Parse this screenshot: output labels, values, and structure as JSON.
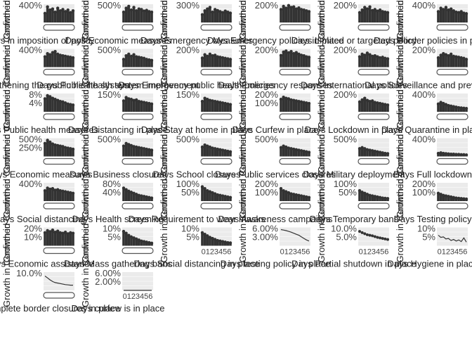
{
  "chart_data": [
    {
      "type": "area",
      "xlabel": "Days in imposition of policy",
      "ylabel": "Growth in Confirmed",
      "y_ticks": [
        "400%"
      ],
      "values": [
        35,
        60,
        48,
        52,
        40,
        55,
        45,
        50,
        42,
        48,
        38,
        45
      ]
    },
    {
      "type": "area",
      "xlabel": "Days Economic measures",
      "ylabel": "Growth in Confirmed",
      "y_ticks": [
        "500%"
      ],
      "values": [
        40,
        55,
        62,
        48,
        58,
        45,
        52,
        50,
        44,
        47,
        42,
        40
      ]
    },
    {
      "type": "area",
      "xlabel": "Days Emergency Measures",
      "ylabel": "Growth in Confirmed",
      "y_ticks": [
        "300%"
      ],
      "values": [
        30,
        45,
        52,
        58,
        40,
        50,
        46,
        42,
        38,
        44,
        40,
        36
      ]
    },
    {
      "type": "area",
      "xlabel": "Days Emergency policies in place",
      "ylabel": "Growth in Confirmed",
      "y_ticks": [
        "200%"
      ],
      "values": [
        50,
        62,
        55,
        65,
        58,
        60,
        52,
        56,
        50,
        48,
        45,
        42
      ]
    },
    {
      "type": "area",
      "xlabel": "Days Limited or targeted policy",
      "ylabel": "Growth in Confirmed",
      "y_ticks": [
        "200%"
      ],
      "values": [
        38,
        48,
        58,
        52,
        60,
        46,
        50,
        44,
        48,
        42,
        40,
        38
      ]
    },
    {
      "type": "area",
      "xlabel": "Days Border policies in place",
      "ylabel": "Growth in Confirmed",
      "y_ticks": [
        "400%"
      ],
      "values": [
        42,
        55,
        50,
        58,
        48,
        52,
        45,
        40,
        38,
        42,
        36,
        34
      ]
    },
    {
      "type": "area",
      "xlabel": "Days Strengthening the public health system",
      "ylabel": "Growth in Confirmed",
      "y_ticks": [
        "400%"
      ],
      "values": [
        40,
        52,
        48,
        56,
        60,
        50,
        46,
        44,
        42,
        40,
        38,
        36
      ]
    },
    {
      "type": "area",
      "xlabel": "Days Public health system improvement",
      "ylabel": "Growth in Confirmed",
      "y_ticks": [
        "500%"
      ],
      "values": [
        30,
        44,
        50,
        42,
        48,
        40,
        38,
        36,
        34,
        30,
        28,
        26
      ]
    },
    {
      "type": "area",
      "xlabel": "Days Emergency public health policies",
      "ylabel": "Growth in Confirmed",
      "y_ticks": [
        "200%"
      ],
      "values": [
        35,
        48,
        42,
        50,
        44,
        46,
        40,
        38,
        36,
        34,
        32,
        30
      ]
    },
    {
      "type": "area",
      "xlabel": "Days Emergency responses",
      "ylabel": "Growth in Confirmed",
      "y_ticks": [
        "200%"
      ],
      "values": [
        45,
        58,
        62,
        55,
        60,
        52,
        56,
        50,
        46,
        44,
        40,
        38
      ]
    },
    {
      "type": "area",
      "xlabel": "Days International policies",
      "ylabel": "Growth in Confirmed",
      "y_ticks": [
        "200%"
      ],
      "values": [
        40,
        50,
        46,
        54,
        48,
        42,
        44,
        40,
        36,
        38,
        34,
        32
      ]
    },
    {
      "type": "area",
      "xlabel": "Days Surveillance and prevention",
      "ylabel": "Growth in Confirmed",
      "y_ticks": [
        "200%"
      ],
      "values": [
        36,
        46,
        52,
        48,
        44,
        50,
        42,
        40,
        38,
        36,
        34,
        30
      ]
    },
    {
      "type": "area",
      "xlabel": "Days Public health measures",
      "ylabel": "Growth in Confirmed",
      "y_ticks": [
        "8%",
        "4%"
      ],
      "values": [
        50,
        62,
        58,
        52,
        48,
        44,
        40,
        38,
        34,
        30,
        28,
        26
      ]
    },
    {
      "type": "area",
      "xlabel": "Days Distancing in place",
      "ylabel": "Growth in Confirmed",
      "y_ticks": [
        "150%"
      ],
      "values": [
        42,
        55,
        50,
        48,
        44,
        46,
        40,
        38,
        36,
        34,
        32,
        30
      ]
    },
    {
      "type": "area",
      "xlabel": "Days Stay at home in place",
      "ylabel": "Growth in Confirmed",
      "y_ticks": [
        "150%"
      ],
      "values": [
        40,
        52,
        48,
        44,
        42,
        40,
        38,
        36,
        34,
        32,
        30,
        28
      ]
    },
    {
      "type": "area",
      "xlabel": "Days Curfew in place",
      "ylabel": "Growth in Confirmed",
      "y_ticks": [
        "200%",
        "100%"
      ],
      "values": [
        48,
        56,
        52,
        50,
        46,
        44,
        42,
        40,
        38,
        36,
        34,
        32
      ]
    },
    {
      "type": "area",
      "xlabel": "Days Lockdown in place",
      "ylabel": "Growth in Confirmed",
      "y_ticks": [
        "200%"
      ],
      "values": [
        38,
        46,
        52,
        44,
        40,
        42,
        36,
        34,
        32,
        30,
        28,
        26
      ]
    },
    {
      "type": "area",
      "xlabel": "Days Quarantine in place",
      "ylabel": "Growth in Confirmed",
      "y_ticks": [
        "400%"
      ],
      "values": [
        30,
        36,
        32,
        28,
        24,
        22,
        20,
        18,
        16,
        15,
        14,
        13
      ]
    },
    {
      "type": "area",
      "xlabel": "Days Economic measures",
      "ylabel": "Growth in Confirmed",
      "y_ticks": [
        "500%",
        "250%"
      ],
      "values": [
        50,
        62,
        55,
        48,
        44,
        42,
        40,
        38,
        34,
        32,
        30,
        28
      ]
    },
    {
      "type": "area",
      "xlabel": "Days Business closures",
      "ylabel": "Growth in Confirmed",
      "y_ticks": [
        "500%"
      ],
      "values": [
        40,
        50,
        46,
        42,
        38,
        36,
        34,
        32,
        30,
        28,
        26,
        24
      ]
    },
    {
      "type": "area",
      "xlabel": "Days School closures",
      "ylabel": "Growth in Confirmed",
      "y_ticks": [
        "500%"
      ],
      "values": [
        36,
        44,
        40,
        36,
        32,
        30,
        28,
        26,
        24,
        22,
        20,
        18
      ]
    },
    {
      "type": "area",
      "xlabel": "Days Public services closures",
      "ylabel": "Growth in Confirmed",
      "y_ticks": [
        "500%"
      ],
      "values": [
        34,
        40,
        36,
        32,
        30,
        28,
        26,
        24,
        22,
        20,
        18,
        16
      ]
    },
    {
      "type": "area",
      "xlabel": "Days Military deployment",
      "ylabel": "Growth in Confirmed",
      "y_ticks": [
        "500%"
      ],
      "values": [
        30,
        34,
        30,
        26,
        24,
        22,
        20,
        18,
        16,
        14,
        12,
        11
      ]
    },
    {
      "type": "area",
      "xlabel": "Days Full lockdown",
      "ylabel": "Growth in Confirmed",
      "y_ticks": [
        "400%"
      ],
      "values": [
        12,
        14,
        12,
        11,
        10,
        9,
        9,
        8,
        8,
        7,
        7,
        6
      ]
    },
    {
      "type": "area",
      "xlabel": "Days Social distancing",
      "ylabel": "Growth in Confirmed",
      "y_ticks": [
        "400%"
      ],
      "values": [
        40,
        50,
        46,
        48,
        42,
        44,
        40,
        38,
        36,
        34,
        32,
        30
      ]
    },
    {
      "type": "area",
      "xlabel": "Days Health screening",
      "ylabel": "Growth in Confirmed",
      "y_ticks": [
        "80%",
        "40%"
      ],
      "values": [
        50,
        44,
        38,
        34,
        30,
        26,
        22,
        20,
        18,
        16,
        14,
        12
      ]
    },
    {
      "type": "area",
      "xlabel": "Days Requirement to wear masks",
      "ylabel": "Growth in Confirmed",
      "y_ticks": [
        "100%",
        "50%"
      ],
      "values": [
        55,
        48,
        40,
        36,
        32,
        28,
        24,
        22,
        20,
        18,
        16,
        14
      ]
    },
    {
      "type": "area",
      "xlabel": "Days Awareness campaigns",
      "ylabel": "Growth in Confirmed",
      "y_ticks": [
        "200%",
        "100%"
      ],
      "values": [
        48,
        40,
        36,
        32,
        28,
        26,
        24,
        22,
        20,
        18,
        16,
        14
      ]
    },
    {
      "type": "area",
      "xlabel": "Days Temporary bans",
      "ylabel": "Growth in Confirmed",
      "y_ticks": [
        "100%",
        "50%"
      ],
      "values": [
        40,
        34,
        30,
        26,
        22,
        20,
        18,
        16,
        14,
        12,
        11,
        10
      ]
    },
    {
      "type": "area",
      "xlabel": "Days Testing policy",
      "ylabel": "Growth in Confirmed",
      "y_ticks": [
        "200%",
        "100%"
      ],
      "values": [
        30,
        26,
        22,
        20,
        18,
        16,
        14,
        12,
        11,
        10,
        9,
        8
      ]
    },
    {
      "type": "area",
      "xlabel": "Days Economic assistance",
      "ylabel": "Growth in Confirmed",
      "y_ticks": [
        "20%",
        "10%"
      ],
      "values": [
        50,
        58,
        54,
        60,
        52,
        56,
        50,
        48,
        52,
        46,
        50,
        48
      ]
    },
    {
      "type": "area",
      "xlabel": "Days Mass gathering bans",
      "ylabel": "Growth in Confirmed",
      "y_ticks": [
        "10%",
        "5%"
      ],
      "values": [
        55,
        48,
        40,
        34,
        30,
        26,
        22,
        18,
        16,
        14,
        12,
        10
      ]
    },
    {
      "type": "area",
      "xlabel": "Days Social distancing in place",
      "ylabel": "Growth in Confirmed",
      "y_ticks": [
        "10%",
        "5%"
      ],
      "values": [
        50,
        44,
        38,
        32,
        28,
        24,
        20,
        18,
        16,
        14,
        12,
        11
      ],
      "x_ticks": [
        "0123456"
      ]
    },
    {
      "type": "line",
      "xlabel": "Days testing policy in place",
      "ylabel": "Growth in Confirmed",
      "y_ticks": [
        "6.00%",
        "3.00%"
      ],
      "values": [
        62,
        60,
        58,
        55,
        52,
        48,
        44,
        40,
        34,
        28,
        22,
        18
      ],
      "x_ticks": [
        "0123456"
      ]
    },
    {
      "type": "scatter",
      "xlabel": "Days Partial shutdown in place",
      "ylabel": "Growth in Confirmed",
      "y_ticks": [
        "10.0%",
        "5.0%"
      ],
      "values": [
        55,
        50,
        46,
        42,
        40,
        38,
        35,
        32,
        30,
        28,
        26,
        24
      ],
      "x_ticks": [
        "0123456"
      ]
    },
    {
      "type": "line",
      "xlabel": "Days Hygiene in place",
      "ylabel": "Growth in Confirmed",
      "y_ticks": [
        "10%",
        "5%"
      ],
      "values": [
        40,
        32,
        34,
        26,
        28,
        20,
        24,
        18,
        22,
        16,
        30,
        14
      ],
      "x_ticks": [
        "0123456"
      ]
    },
    {
      "type": "line",
      "xlabel": "Days Complete border closures in place",
      "ylabel": "Growth in Confirmed",
      "y_ticks": [
        "10.0%"
      ],
      "values": [
        55,
        48,
        40,
        34,
        30,
        28,
        26,
        24,
        22,
        21,
        20,
        20
      ]
    },
    {
      "type": "line",
      "xlabel": "Days curfew is in place",
      "ylabel": "Growth in Confirmed",
      "y_ticks": [
        "6.00%",
        "2.00%"
      ],
      "values": [
        0,
        0,
        0,
        0,
        0,
        0,
        0,
        0,
        0,
        0,
        0,
        0
      ],
      "x_ticks": [
        "0123456"
      ]
    }
  ]
}
